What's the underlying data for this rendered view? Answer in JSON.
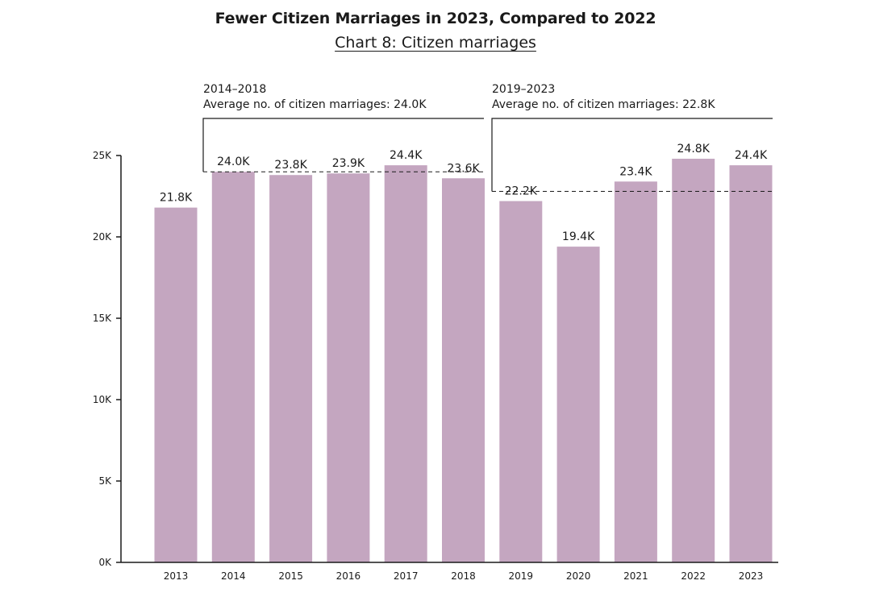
{
  "chart_data": {
    "type": "bar",
    "title": "Fewer Citizen Marriages in 2023, Compared to 2022",
    "subtitle": "Chart 8: Citizen marriages",
    "categories": [
      "2013",
      "2014",
      "2015",
      "2016",
      "2017",
      "2018",
      "2019",
      "2020",
      "2021",
      "2022",
      "2023"
    ],
    "values": [
      21.8,
      24.0,
      23.8,
      23.9,
      24.4,
      23.6,
      22.2,
      19.4,
      23.4,
      24.8,
      24.4
    ],
    "data_labels": [
      "21.8K",
      "24.0K",
      "23.8K",
      "23.9K",
      "24.4K",
      "23.6K",
      "22.2K",
      "19.4K",
      "23.4K",
      "24.8K",
      "24.4K"
    ],
    "unit": "thousand",
    "xlabel": "",
    "ylabel": "",
    "ylim": [
      0,
      25
    ],
    "yticks": [
      0,
      5,
      10,
      15,
      20,
      25
    ],
    "ytick_labels": [
      "0K",
      "5K",
      "10K",
      "15K",
      "20K",
      "25K"
    ],
    "bar_color": "#c4a6c0",
    "grid": false,
    "legend": "none",
    "annotations": [
      {
        "period": "2014–2018",
        "text": "Average no. of citizen marriages: 24.0K",
        "average": 24.0,
        "from": "2014",
        "to": "2018"
      },
      {
        "period": "2019–2023",
        "text": "Average no. of citizen marriages: 22.8K",
        "average": 22.8,
        "from": "2019",
        "to": "2023"
      }
    ]
  }
}
